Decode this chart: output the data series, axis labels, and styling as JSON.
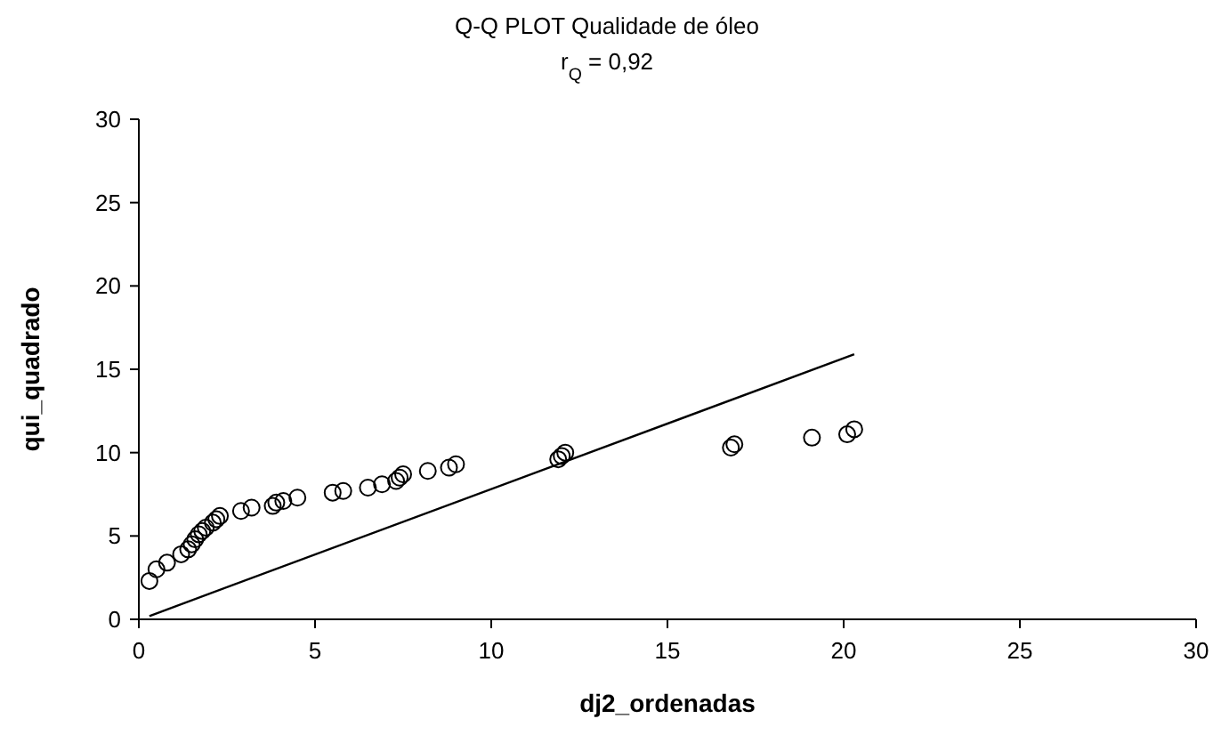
{
  "chart_data": {
    "type": "scatter",
    "title": "Q-Q PLOT Qualidade de óleo",
    "subtitle": "r$_{Q}$ = 0,92",
    "xlabel": "dj2_ordenadas",
    "ylabel": "qui_quadrado",
    "xlim": [
      0,
      30
    ],
    "ylim": [
      0,
      30
    ],
    "xticks": [
      0,
      5,
      10,
      15,
      20,
      25,
      30
    ],
    "yticks": [
      0,
      5,
      10,
      15,
      20,
      25,
      30
    ],
    "grid": false,
    "series": [
      {
        "color": "#000000",
        "marker": "circle",
        "x": [
          0.3,
          0.5,
          0.8,
          1.2,
          1.4,
          1.5,
          1.6,
          1.7,
          1.8,
          1.9,
          2.1,
          2.2,
          2.3,
          2.9,
          3.2,
          3.8,
          3.9,
          4.1,
          4.5,
          5.5,
          5.8,
          6.5,
          6.9,
          7.3,
          7.4,
          7.5,
          8.2,
          8.8,
          9.0,
          11.9,
          12.0,
          12.1,
          16.8,
          16.9,
          19.1,
          20.1,
          20.3
        ],
        "values": [
          2.3,
          3.0,
          3.4,
          3.9,
          4.2,
          4.5,
          4.8,
          5.1,
          5.3,
          5.5,
          5.8,
          6.0,
          6.2,
          6.5,
          6.7,
          6.8,
          7.0,
          7.1,
          7.3,
          7.6,
          7.7,
          7.9,
          8.1,
          8.3,
          8.5,
          8.7,
          8.9,
          9.1,
          9.3,
          9.6,
          9.8,
          10.0,
          10.3,
          10.5,
          10.9,
          11.1,
          11.4
        ]
      },
      {
        "type": "line",
        "color": "#000000",
        "marker": "none",
        "x": [
          0.3,
          20.3
        ],
        "values": [
          0.2,
          15.9
        ]
      }
    ]
  }
}
